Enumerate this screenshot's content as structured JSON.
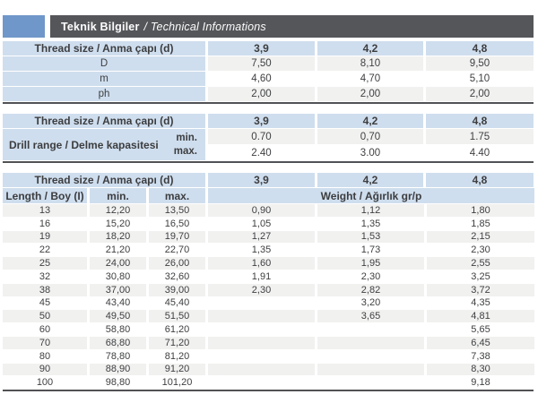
{
  "title": {
    "main": "Teknik Bilgiler",
    "sub": "/ Technical Informations"
  },
  "colors": {
    "accent_blue": "#7097CA",
    "title_bar_gray": "#55565A",
    "header_cell_blue": "#CFDEEE",
    "row_stripe_gray": "#F1F1F0",
    "rule_dark": "#515255"
  },
  "shared": {
    "thread_header": "Thread size / Anma çapı (d)",
    "sizes": [
      "3,9",
      "4,2",
      "4,8"
    ]
  },
  "table1": {
    "rows": [
      {
        "label": "D",
        "values": [
          "7,50",
          "8,10",
          "9,50"
        ]
      },
      {
        "label": "m",
        "values": [
          "4,60",
          "4,70",
          "5,10"
        ]
      },
      {
        "label": "ph",
        "values": [
          "2,00",
          "2,00",
          "2,00"
        ]
      }
    ]
  },
  "table2": {
    "label": "Drill range / Delme kapasitesi",
    "rows": [
      {
        "label": "min.",
        "values": [
          "0.70",
          "0,70",
          "1.75"
        ]
      },
      {
        "label": "max.",
        "values": [
          "2.40",
          "3.00",
          "4.40"
        ]
      }
    ]
  },
  "table3": {
    "length_header": "Length / Boy (I)",
    "min_header": "min.",
    "max_header": "max.",
    "weight_header": "Weight / Ağırlık gr/p",
    "rows": [
      {
        "len": "13",
        "min": "12,20",
        "max": "13,50",
        "w1": "0,90",
        "w2": "1,12",
        "w3": "1,80"
      },
      {
        "len": "16",
        "min": "15,20",
        "max": "16,50",
        "w1": "1,05",
        "w2": "1,35",
        "w3": "1,85"
      },
      {
        "len": "19",
        "min": "18,20",
        "max": "19,70",
        "w1": "1,27",
        "w2": "1,53",
        "w3": "2,15"
      },
      {
        "len": "22",
        "min": "21,20",
        "max": "22,70",
        "w1": "1,35",
        "w2": "1,73",
        "w3": "2,30"
      },
      {
        "len": "25",
        "min": "24,00",
        "max": "26,00",
        "w1": "1,60",
        "w2": "1,95",
        "w3": "2,55"
      },
      {
        "len": "32",
        "min": "30,80",
        "max": "32,60",
        "w1": "1,91",
        "w2": "2,30",
        "w3": "3,25"
      },
      {
        "len": "38",
        "min": "37,00",
        "max": "39,00",
        "w1": "2,30",
        "w2": "2,82",
        "w3": "3,72"
      },
      {
        "len": "45",
        "min": "43,40",
        "max": "45,40",
        "w1": "",
        "w2": "3,20",
        "w3": "4,35"
      },
      {
        "len": "50",
        "min": "49,50",
        "max": "51,50",
        "w1": "",
        "w2": "3,65",
        "w3": "4,81"
      },
      {
        "len": "60",
        "min": "58,80",
        "max": "61,20",
        "w1": "",
        "w2": "",
        "w3": "5,65"
      },
      {
        "len": "70",
        "min": "68,80",
        "max": "71,20",
        "w1": "",
        "w2": "",
        "w3": "6,45"
      },
      {
        "len": "80",
        "min": "78,80",
        "max": "81,20",
        "w1": "",
        "w2": "",
        "w3": "7,38"
      },
      {
        "len": "90",
        "min": "88,90",
        "max": "91,20",
        "w1": "",
        "w2": "",
        "w3": "8,30"
      },
      {
        "len": "100",
        "min": "98,80",
        "max": "101,20",
        "w1": "",
        "w2": "",
        "w3": "9,18"
      }
    ]
  }
}
